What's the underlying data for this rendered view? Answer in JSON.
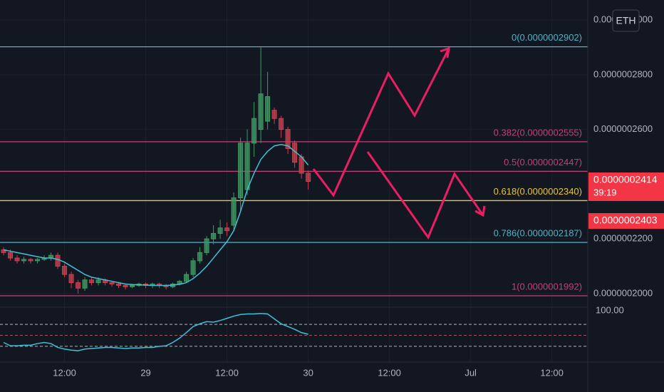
{
  "chart_data": {
    "type": "candlestick",
    "symbol": "ETH",
    "x": [
      0,
      1,
      2,
      3,
      4,
      5,
      6,
      7,
      8,
      9,
      10,
      11,
      12,
      13,
      14,
      15,
      16,
      17,
      18,
      19,
      20,
      21,
      22,
      23,
      24,
      25,
      26,
      27,
      28,
      29,
      30,
      31,
      32,
      33,
      34,
      35,
      36,
      37,
      38,
      39,
      40,
      41,
      42,
      43,
      44,
      45
    ],
    "xlim": [
      -0.53,
      86.3
    ],
    "xticks": [
      {
        "value": 9,
        "label": "12:00"
      },
      {
        "value": 21,
        "label": "29"
      },
      {
        "value": 33,
        "label": "12:00"
      },
      {
        "value": 45,
        "label": "30"
      },
      {
        "value": 57,
        "label": "12:00"
      },
      {
        "value": 69,
        "label": "Jul"
      },
      {
        "value": 81,
        "label": "12:00"
      }
    ],
    "ylim": [
      1.953e-07,
      3.073e-07
    ],
    "yticks": [
      {
        "value": 2e-07,
        "label": "0.0000002000"
      },
      {
        "value": 2.2e-07,
        "label": "0.0000002200"
      },
      {
        "value": 2.6e-07,
        "label": "0.0000002600"
      },
      {
        "value": 2.8e-07,
        "label": "0.0000002800"
      },
      {
        "value": 3e-07,
        "label": "0.0000003000"
      }
    ],
    "grid": true,
    "up_color": "#3f9a63",
    "down_color": "#c8424f",
    "candles": {
      "open": [
        2.16e-07,
        2.15e-07,
        2.13e-07,
        2.12e-07,
        2.125e-07,
        2.12e-07,
        2.125e-07,
        2.13e-07,
        2.14e-07,
        2.1e-07,
        2.07e-07,
        2.04e-07,
        2.02e-07,
        2.05e-07,
        2.04e-07,
        2.05e-07,
        2.04e-07,
        2.035e-07,
        2.03e-07,
        2.025e-07,
        2.03e-07,
        2.035e-07,
        2.03e-07,
        2.035e-07,
        2.03e-07,
        2.025e-07,
        2.035e-07,
        2.045e-07,
        2.07e-07,
        2.12e-07,
        2.15e-07,
        2.2e-07,
        2.22e-07,
        2.24e-07,
        2.25e-07,
        2.35e-07,
        2.38e-07,
        2.55e-07,
        2.6e-07,
        2.63e-07,
        2.67e-07,
        2.64e-07,
        2.6e-07,
        2.55e-07,
        2.5e-07,
        2.44e-07
      ],
      "high": [
        2.17e-07,
        2.16e-07,
        2.14e-07,
        2.135e-07,
        2.13e-07,
        2.13e-07,
        2.14e-07,
        2.15e-07,
        2.15e-07,
        2.11e-07,
        2.08e-07,
        2.05e-07,
        2.06e-07,
        2.06e-07,
        2.06e-07,
        2.055e-07,
        2.045e-07,
        2.04e-07,
        2.035e-07,
        2.035e-07,
        2.04e-07,
        2.04e-07,
        2.04e-07,
        2.04e-07,
        2.035e-07,
        2.04e-07,
        2.05e-07,
        2.08e-07,
        2.13e-07,
        2.17e-07,
        2.21e-07,
        2.25e-07,
        2.27e-07,
        2.26e-07,
        2.37e-07,
        2.57e-07,
        2.6e-07,
        2.7e-07,
        2.9e-07,
        2.81e-07,
        2.68e-07,
        2.65e-07,
        2.61e-07,
        2.56e-07,
        2.51e-07,
        2.45e-07
      ],
      "low": [
        2.14e-07,
        2.12e-07,
        2.11e-07,
        2.11e-07,
        2.11e-07,
        2.11e-07,
        2.12e-07,
        2.12e-07,
        2.09e-07,
        2.06e-07,
        2.02e-07,
        2e-07,
        2.01e-07,
        2.03e-07,
        2.03e-07,
        2.03e-07,
        2.025e-07,
        2.02e-07,
        2.015e-07,
        2.02e-07,
        2.025e-07,
        2.02e-07,
        2.02e-07,
        2.02e-07,
        2.015e-07,
        2.02e-07,
        2.03e-07,
        2.04e-07,
        2.06e-07,
        2.11e-07,
        2.14e-07,
        2.18e-07,
        2.2e-07,
        2.21e-07,
        2.23e-07,
        2.3e-07,
        2.36e-07,
        2.5e-07,
        2.55e-07,
        2.6e-07,
        2.62e-07,
        2.57e-07,
        2.51e-07,
        2.46e-07,
        2.42e-07,
        2.38e-07
      ],
      "close": [
        2.15e-07,
        2.13e-07,
        2.12e-07,
        2.125e-07,
        2.12e-07,
        2.125e-07,
        2.13e-07,
        2.14e-07,
        2.1e-07,
        2.07e-07,
        2.04e-07,
        2.02e-07,
        2.05e-07,
        2.04e-07,
        2.05e-07,
        2.04e-07,
        2.035e-07,
        2.03e-07,
        2.025e-07,
        2.03e-07,
        2.035e-07,
        2.03e-07,
        2.035e-07,
        2.03e-07,
        2.025e-07,
        2.035e-07,
        2.045e-07,
        2.07e-07,
        2.12e-07,
        2.15e-07,
        2.2e-07,
        2.22e-07,
        2.24e-07,
        2.23e-07,
        2.35e-07,
        2.55e-07,
        2.55e-07,
        2.64e-07,
        2.73e-07,
        2.72e-07,
        2.64e-07,
        2.6e-07,
        2.53e-07,
        2.48e-07,
        2.44e-07,
        2.41e-07
      ]
    },
    "ma": {
      "color": "#3fc1d6",
      "values": [
        2.16e-07,
        2.155e-07,
        2.15e-07,
        2.145e-07,
        2.14e-07,
        2.135e-07,
        2.13e-07,
        2.13e-07,
        2.125e-07,
        2.115e-07,
        2.1e-07,
        2.085e-07,
        2.07e-07,
        2.06e-07,
        2.055e-07,
        2.05e-07,
        2.045e-07,
        2.04e-07,
        2.035e-07,
        2.033e-07,
        2.032e-07,
        2.031e-07,
        2.03e-07,
        2.03e-07,
        2.03e-07,
        2.031e-07,
        2.034e-07,
        2.04e-07,
        2.055e-07,
        2.075e-07,
        2.1e-07,
        2.13e-07,
        2.16e-07,
        2.19e-07,
        2.23e-07,
        2.3e-07,
        2.38e-07,
        2.44e-07,
        2.49e-07,
        2.52e-07,
        2.54e-07,
        2.545e-07,
        2.54e-07,
        2.52e-07,
        2.5e-07,
        2.47e-07
      ]
    },
    "fib_levels": [
      {
        "label": "0(0.0000002902)",
        "value": 2.902e-07,
        "color": "#4fb3c4"
      },
      {
        "label": "0.382(0.0000002555)",
        "value": 2.555e-07,
        "color": "#c2407a"
      },
      {
        "label": "0.5(0.0000002447)",
        "value": 2.447e-07,
        "color": "#c2407a"
      },
      {
        "label": "0.618(0.0000002340)",
        "value": 2.34e-07,
        "color": "#e6c63a"
      },
      {
        "label": "0.786(0.0000002187)",
        "value": 2.187e-07,
        "color": "#4fb3c4"
      },
      {
        "label": "1(0.0000001992)",
        "value": 1.992e-07,
        "color": "#c2407a"
      }
    ],
    "price_tags": [
      {
        "label": "0.0000002414",
        "value": 2.414e-07,
        "countdown": "39:19",
        "color": "#f23645"
      },
      {
        "label": "0.0000002403",
        "value": 2.403e-07,
        "color": "#f23645"
      }
    ],
    "indicator": {
      "ylim": [
        0,
        100
      ],
      "yticks": [
        {
          "value": 100,
          "label": "100.00"
        }
      ],
      "levels": [
        70,
        50,
        30
      ],
      "level_colors": [
        "#b2b5be",
        "#a0525f",
        "#b2b5be"
      ],
      "color": "#3fc1d6",
      "values": [
        37,
        31,
        31,
        32,
        32,
        35,
        37,
        35,
        28,
        25,
        23,
        22,
        25,
        26,
        27,
        28,
        28,
        27,
        26,
        27,
        27,
        28,
        28,
        30,
        31,
        37,
        45,
        55,
        66,
        71,
        75,
        74,
        77,
        81,
        85,
        88,
        89,
        89,
        90,
        89,
        80,
        71,
        66,
        61,
        55,
        52
      ]
    }
  }
}
